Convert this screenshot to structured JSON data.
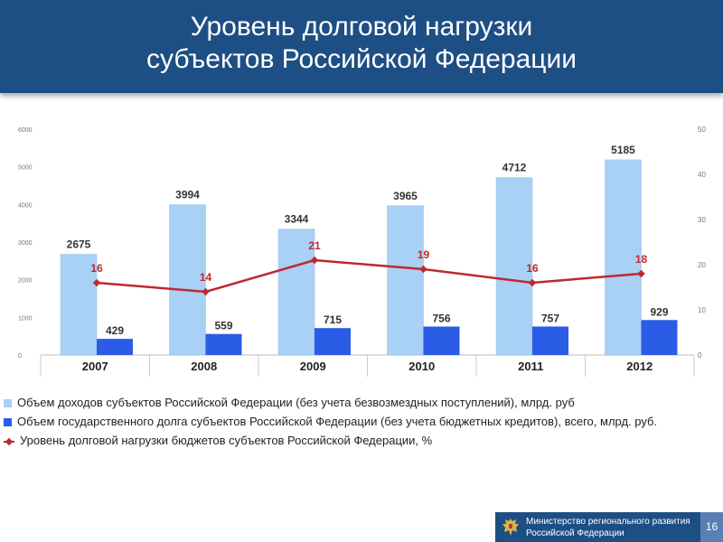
{
  "header": {
    "title_line1": "Уровень долговой нагрузки",
    "title_line2": "субъектов Российской Федерации"
  },
  "chart_data": {
    "type": "bar",
    "categories": [
      "2007",
      "2008",
      "2009",
      "2010",
      "2011",
      "2012"
    ],
    "left_axis": {
      "ticks": [
        "0",
        "1000",
        "2000",
        "3000",
        "4000",
        "5000",
        "6000"
      ],
      "ylim": [
        0,
        6000
      ]
    },
    "right_axis": {
      "ticks": [
        "0",
        "10",
        "20",
        "30",
        "40",
        "50"
      ],
      "ylim": [
        0,
        50
      ]
    },
    "series": [
      {
        "name": "Объем доходов субъектов Российской Федерации (без учета безвозмездных поступлений), млрд. руб",
        "kind": "bar",
        "axis": "left",
        "color": "#a9d0f5",
        "values": [
          2675,
          3994,
          3344,
          3965,
          4712,
          5185
        ]
      },
      {
        "name": "Объем государственного долга субъектов Российской Федерации (без учета бюджетных кредитов), всего, млрд. руб.",
        "kind": "bar",
        "axis": "left",
        "color": "#2b5ce6",
        "values": [
          429,
          559,
          715,
          756,
          757,
          929
        ]
      },
      {
        "name": "Уровень долговой нагрузки бюджетов субъектов Российской Федерации, %",
        "kind": "line",
        "axis": "right",
        "color": "#c0282d",
        "values": [
          16,
          14,
          21,
          19,
          16,
          18
        ]
      }
    ],
    "legend_position": "bottom"
  },
  "footer": {
    "org_line1": "Министерство регионального развития",
    "org_line2": "Российской Федерации",
    "page_number": "16",
    "emblem_icon": "double-headed-eagle-icon"
  }
}
